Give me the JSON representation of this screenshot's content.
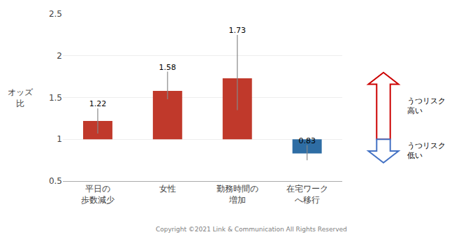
{
  "chart_data": {
    "type": "bar",
    "categories": [
      "平日の\n歩数減少",
      "女性",
      "勤務時間の\n増加",
      "在宅ワーク\nへ移行"
    ],
    "values": [
      1.22,
      1.58,
      1.73,
      0.83
    ],
    "colors": [
      "#c0392b",
      "#c0392b",
      "#c0392b",
      "#2e6da4"
    ],
    "error_low": [
      0.15,
      0.1,
      0.38,
      0.08
    ],
    "error_high": [
      0.15,
      0.23,
      0.52,
      0.1
    ],
    "baseline": 1.0,
    "ylabel": "オッズ\n比",
    "ylim": [
      0.5,
      2.5
    ],
    "yticks": [
      0.5,
      1,
      1.5,
      2,
      2.5
    ],
    "grid": true,
    "data_labels": true,
    "arrows": [
      {
        "from": 1.0,
        "to": 1.8,
        "color": "#cc0000",
        "label": "うつリスク\n高い"
      },
      {
        "from": 1.0,
        "to": 0.72,
        "color": "#4472c4",
        "label": "うつリスク\n低い"
      }
    ],
    "annotations": [
      "Copyright ©2021 Link & Communication All Rights Reserved"
    ]
  }
}
